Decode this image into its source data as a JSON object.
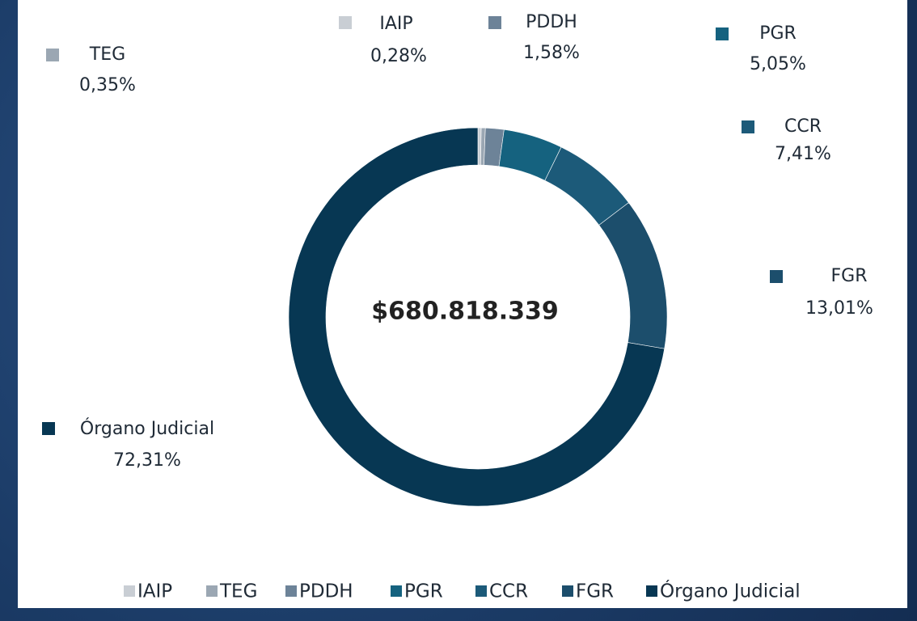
{
  "chart_data": {
    "type": "donut",
    "center_label": "$680.818.339",
    "categories": [
      "IAIP",
      "TEG",
      "PDDH",
      "PGR",
      "CCR",
      "FGR",
      "Órgano Judicial"
    ],
    "values": [
      0.28,
      0.35,
      1.58,
      5.05,
      7.41,
      13.01,
      72.31
    ],
    "value_labels": [
      "0,28%",
      "0,35%",
      "1,58%",
      "5,05%",
      "7,41%",
      "13,01%",
      "72,31%"
    ],
    "colors": [
      "#c9ced4",
      "#9ba7b3",
      "#6d8398",
      "#15627f",
      "#1c5a79",
      "#1c4e6c",
      "#073753"
    ],
    "legend": "bottom"
  }
}
